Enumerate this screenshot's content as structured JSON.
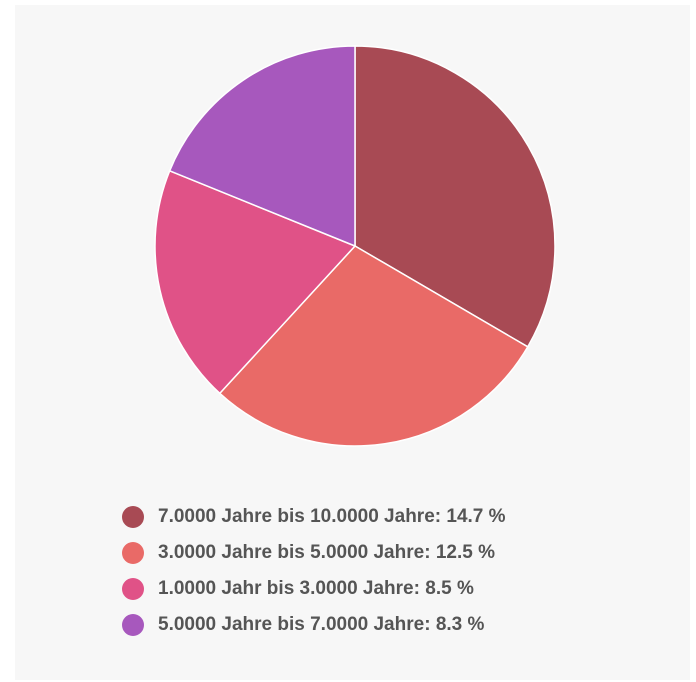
{
  "chart_data": {
    "type": "pie",
    "categories": [
      "7.0000 Jahre bis 10.0000 Jahre:",
      "3.0000 Jahre bis 5.0000 Jahre:",
      "1.0000 Jahr bis 3.0000 Jahre:",
      "5.0000 Jahre bis 7.0000 Jahre:"
    ],
    "values": [
      14.7,
      12.5,
      8.5,
      8.3
    ],
    "value_labels": [
      "14.7 %",
      "12.5 %",
      "8.5 %",
      "8.3 %"
    ],
    "colors": [
      "#a84a54",
      "#e96a67",
      "#e05287",
      "#a758bd"
    ],
    "legend": "bottom"
  }
}
